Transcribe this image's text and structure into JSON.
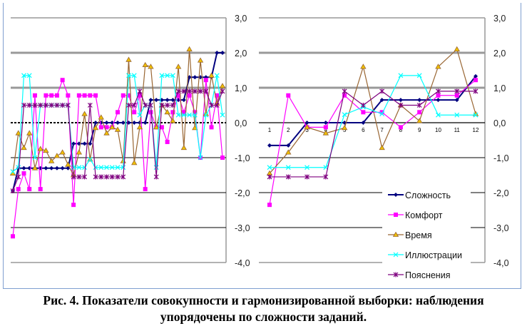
{
  "caption": {
    "line1": "Рис. 4. Показатели совокупности и гармонизированной выборки: наблюдения",
    "line2": "упорядочены по сложности заданий."
  },
  "colors": {
    "Сложность": "#00007f",
    "Комфорт": "#ff00ff",
    "Время": "#996633",
    "Время_marker": "#f0c000",
    "Иллюстрации": "#00ffff",
    "Пояснения": "#7f007f"
  },
  "chart_data": [
    {
      "type": "line",
      "title": "",
      "xlabel": "",
      "ylabel": "",
      "ylim": [
        -4.0,
        3.0
      ],
      "yticks": [
        "3,0",
        "2,0",
        "1,0",
        "0,0",
        "-1,0",
        "-2,0",
        "-3,0",
        "-4,0"
      ],
      "x_count": 39,
      "series": [
        {
          "name": "Сложность",
          "marker": "diamond",
          "values": [
            -1.95,
            -1.3,
            -1.3,
            -1.3,
            -1.3,
            -1.3,
            -1.3,
            -1.3,
            -1.3,
            -1.3,
            -1.3,
            -0.6,
            -0.6,
            -0.6,
            -0.6,
            0,
            0,
            0,
            0,
            0,
            0,
            0,
            0,
            0,
            0,
            0.65,
            0.65,
            0.65,
            0.65,
            0.65,
            0.65,
            0.65,
            1.3,
            1.3,
            1.3,
            1.3,
            1.3,
            2.0,
            2.0
          ]
        },
        {
          "name": "Комфорт",
          "marker": "square",
          "values": [
            -3.25,
            -1.9,
            -1.45,
            -1.9,
            0.78,
            -1.9,
            0.78,
            0.78,
            0.78,
            1.22,
            0.78,
            -2.35,
            0.78,
            0.78,
            0.78,
            0.78,
            -0.13,
            -0.13,
            -0.13,
            0.3,
            0.78,
            0.78,
            0.3,
            0.78,
            -1.9,
            0.3,
            -0.13,
            -0.13,
            -0.55,
            0.3,
            0.78,
            0.3,
            0.78,
            0.3,
            -1.0,
            1.22,
            -0.13,
            0.78,
            -1.0
          ]
        },
        {
          "name": "Время",
          "marker": "triangle",
          "values": [
            -1.45,
            -0.3,
            -0.72,
            -0.3,
            -1.3,
            -0.75,
            -0.8,
            -1.1,
            -0.95,
            -0.85,
            -1.2,
            -1.5,
            -0.85,
            0.25,
            -1.05,
            -0.15,
            0.15,
            -0.3,
            -0.13,
            -0.2,
            -1.1,
            1.8,
            -1.15,
            -0.13,
            1.65,
            1.6,
            -0.13,
            0.5,
            0.3,
            0.05,
            1.6,
            -0.72,
            2.1,
            -0.15,
            1.78,
            0.25,
            1.35,
            0.55,
            1.05
          ]
        },
        {
          "name": "Иллюстрации",
          "marker": "x",
          "values": [
            -1.4,
            -1.28,
            1.35,
            1.35,
            -1.0,
            0.5,
            0.5,
            0.5,
            0.5,
            0.5,
            0.5,
            -1.28,
            -1.28,
            -1.28,
            -1.05,
            -1.28,
            -1.28,
            -1.28,
            -1.28,
            -1.28,
            -1.28,
            1.35,
            1.35,
            0.22,
            0.5,
            0.5,
            -1.28,
            1.35,
            1.35,
            1.35,
            0.22,
            0.22,
            0.22,
            0.22,
            -1.0,
            0.22,
            0.5,
            1.35,
            0.22
          ]
        },
        {
          "name": "Пояснения",
          "marker": "star",
          "values": [
            -1.95,
            -1.55,
            0.5,
            0.5,
            0.5,
            0.5,
            0.5,
            0.5,
            0.5,
            0.5,
            0.5,
            -1.55,
            -1.55,
            -1.55,
            0.5,
            -1.55,
            -1.55,
            -1.55,
            -1.55,
            -1.55,
            -1.55,
            0.5,
            0.5,
            0.9,
            0.5,
            0.5,
            -1.55,
            0.5,
            0.5,
            0.5,
            0.9,
            0.9,
            0.9,
            0.9,
            0.9,
            0.9,
            0.5,
            0.5,
            0.9
          ]
        }
      ]
    },
    {
      "type": "line",
      "title": "",
      "xlabel": "",
      "ylabel": "",
      "ylim": [
        -4.0,
        3.0
      ],
      "yticks": [
        "3,0",
        "2,0",
        "1,0",
        "0,0",
        "-1,0",
        "-2,0",
        "-3,0",
        "-4,0"
      ],
      "categories": [
        "1",
        "2",
        "3",
        "4",
        "5",
        "6",
        "7",
        "8",
        "9",
        "10",
        "11",
        "12"
      ],
      "legend": "bottom-right",
      "series": [
        {
          "name": "Сложность",
          "marker": "diamond",
          "values": [
            -0.65,
            -0.65,
            0,
            0,
            0,
            0,
            0.65,
            0.65,
            0.65,
            0.65,
            0.65,
            1.33
          ]
        },
        {
          "name": "Комфорт",
          "marker": "square",
          "values": [
            -2.35,
            0.78,
            -0.13,
            -0.13,
            0.78,
            0.3,
            0.3,
            -0.13,
            0.3,
            0.78,
            0.78,
            1.22
          ]
        },
        {
          "name": "Время",
          "marker": "triangle",
          "values": [
            -1.45,
            -0.85,
            -0.13,
            -0.3,
            -0.15,
            1.6,
            -0.72,
            0.5,
            0.05,
            1.6,
            2.1,
            0.25
          ]
        },
        {
          "name": "Иллюстрации",
          "marker": "x",
          "values": [
            -1.28,
            -1.28,
            -1.28,
            -1.28,
            0.23,
            0.45,
            0.25,
            1.35,
            1.35,
            0.22,
            0.22,
            0.22
          ]
        },
        {
          "name": "Пояснения",
          "marker": "star",
          "values": [
            -1.55,
            -1.55,
            -1.55,
            -1.55,
            0.9,
            0.5,
            0.9,
            0.5,
            0.5,
            0.9,
            0.9,
            0.9
          ]
        }
      ]
    }
  ]
}
